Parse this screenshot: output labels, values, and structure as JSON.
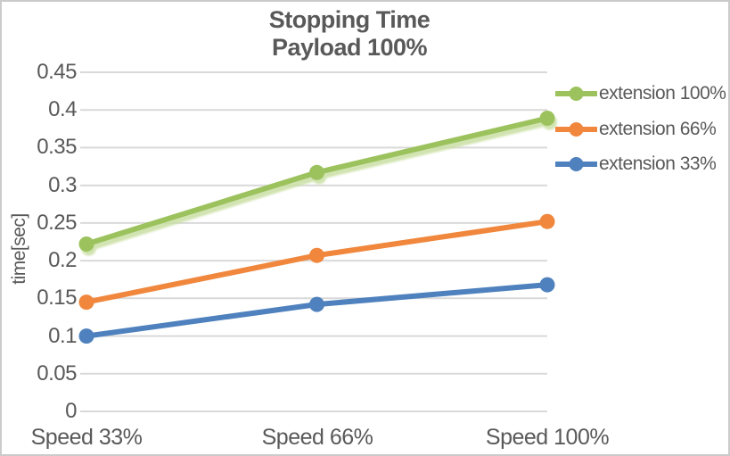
{
  "chart_data": {
    "type": "line",
    "title_line1": "Stopping Time",
    "title_line2": "Payload 100%",
    "ylabel": "time[sec]",
    "categories": [
      "Speed 33%",
      "Speed 66%",
      "Speed 100%"
    ],
    "series": [
      {
        "name": "extension 100%",
        "color": "#9CC25E",
        "shadow": true,
        "shadow_color": "#C9DFA3",
        "values": [
          0.222,
          0.317,
          0.389
        ]
      },
      {
        "name": "extension 66%",
        "color": "#F0873D",
        "shadow": false,
        "values": [
          0.145,
          0.207,
          0.252
        ]
      },
      {
        "name": "extension 33%",
        "color": "#4E81BD",
        "shadow": false,
        "values": [
          0.1,
          0.142,
          0.168
        ]
      }
    ],
    "ylim": [
      0,
      0.45
    ],
    "ytick_labels": [
      "0",
      "0.05",
      "0.1",
      "0.15",
      "0.2",
      "0.25",
      "0.3",
      "0.35",
      "0.4",
      "0.45"
    ],
    "grid": true,
    "legend_position": "right",
    "colors": {
      "text": "#595959",
      "gridline": "#d9d9d9",
      "border": "#cbcbcb",
      "background": "#ffffff"
    }
  }
}
